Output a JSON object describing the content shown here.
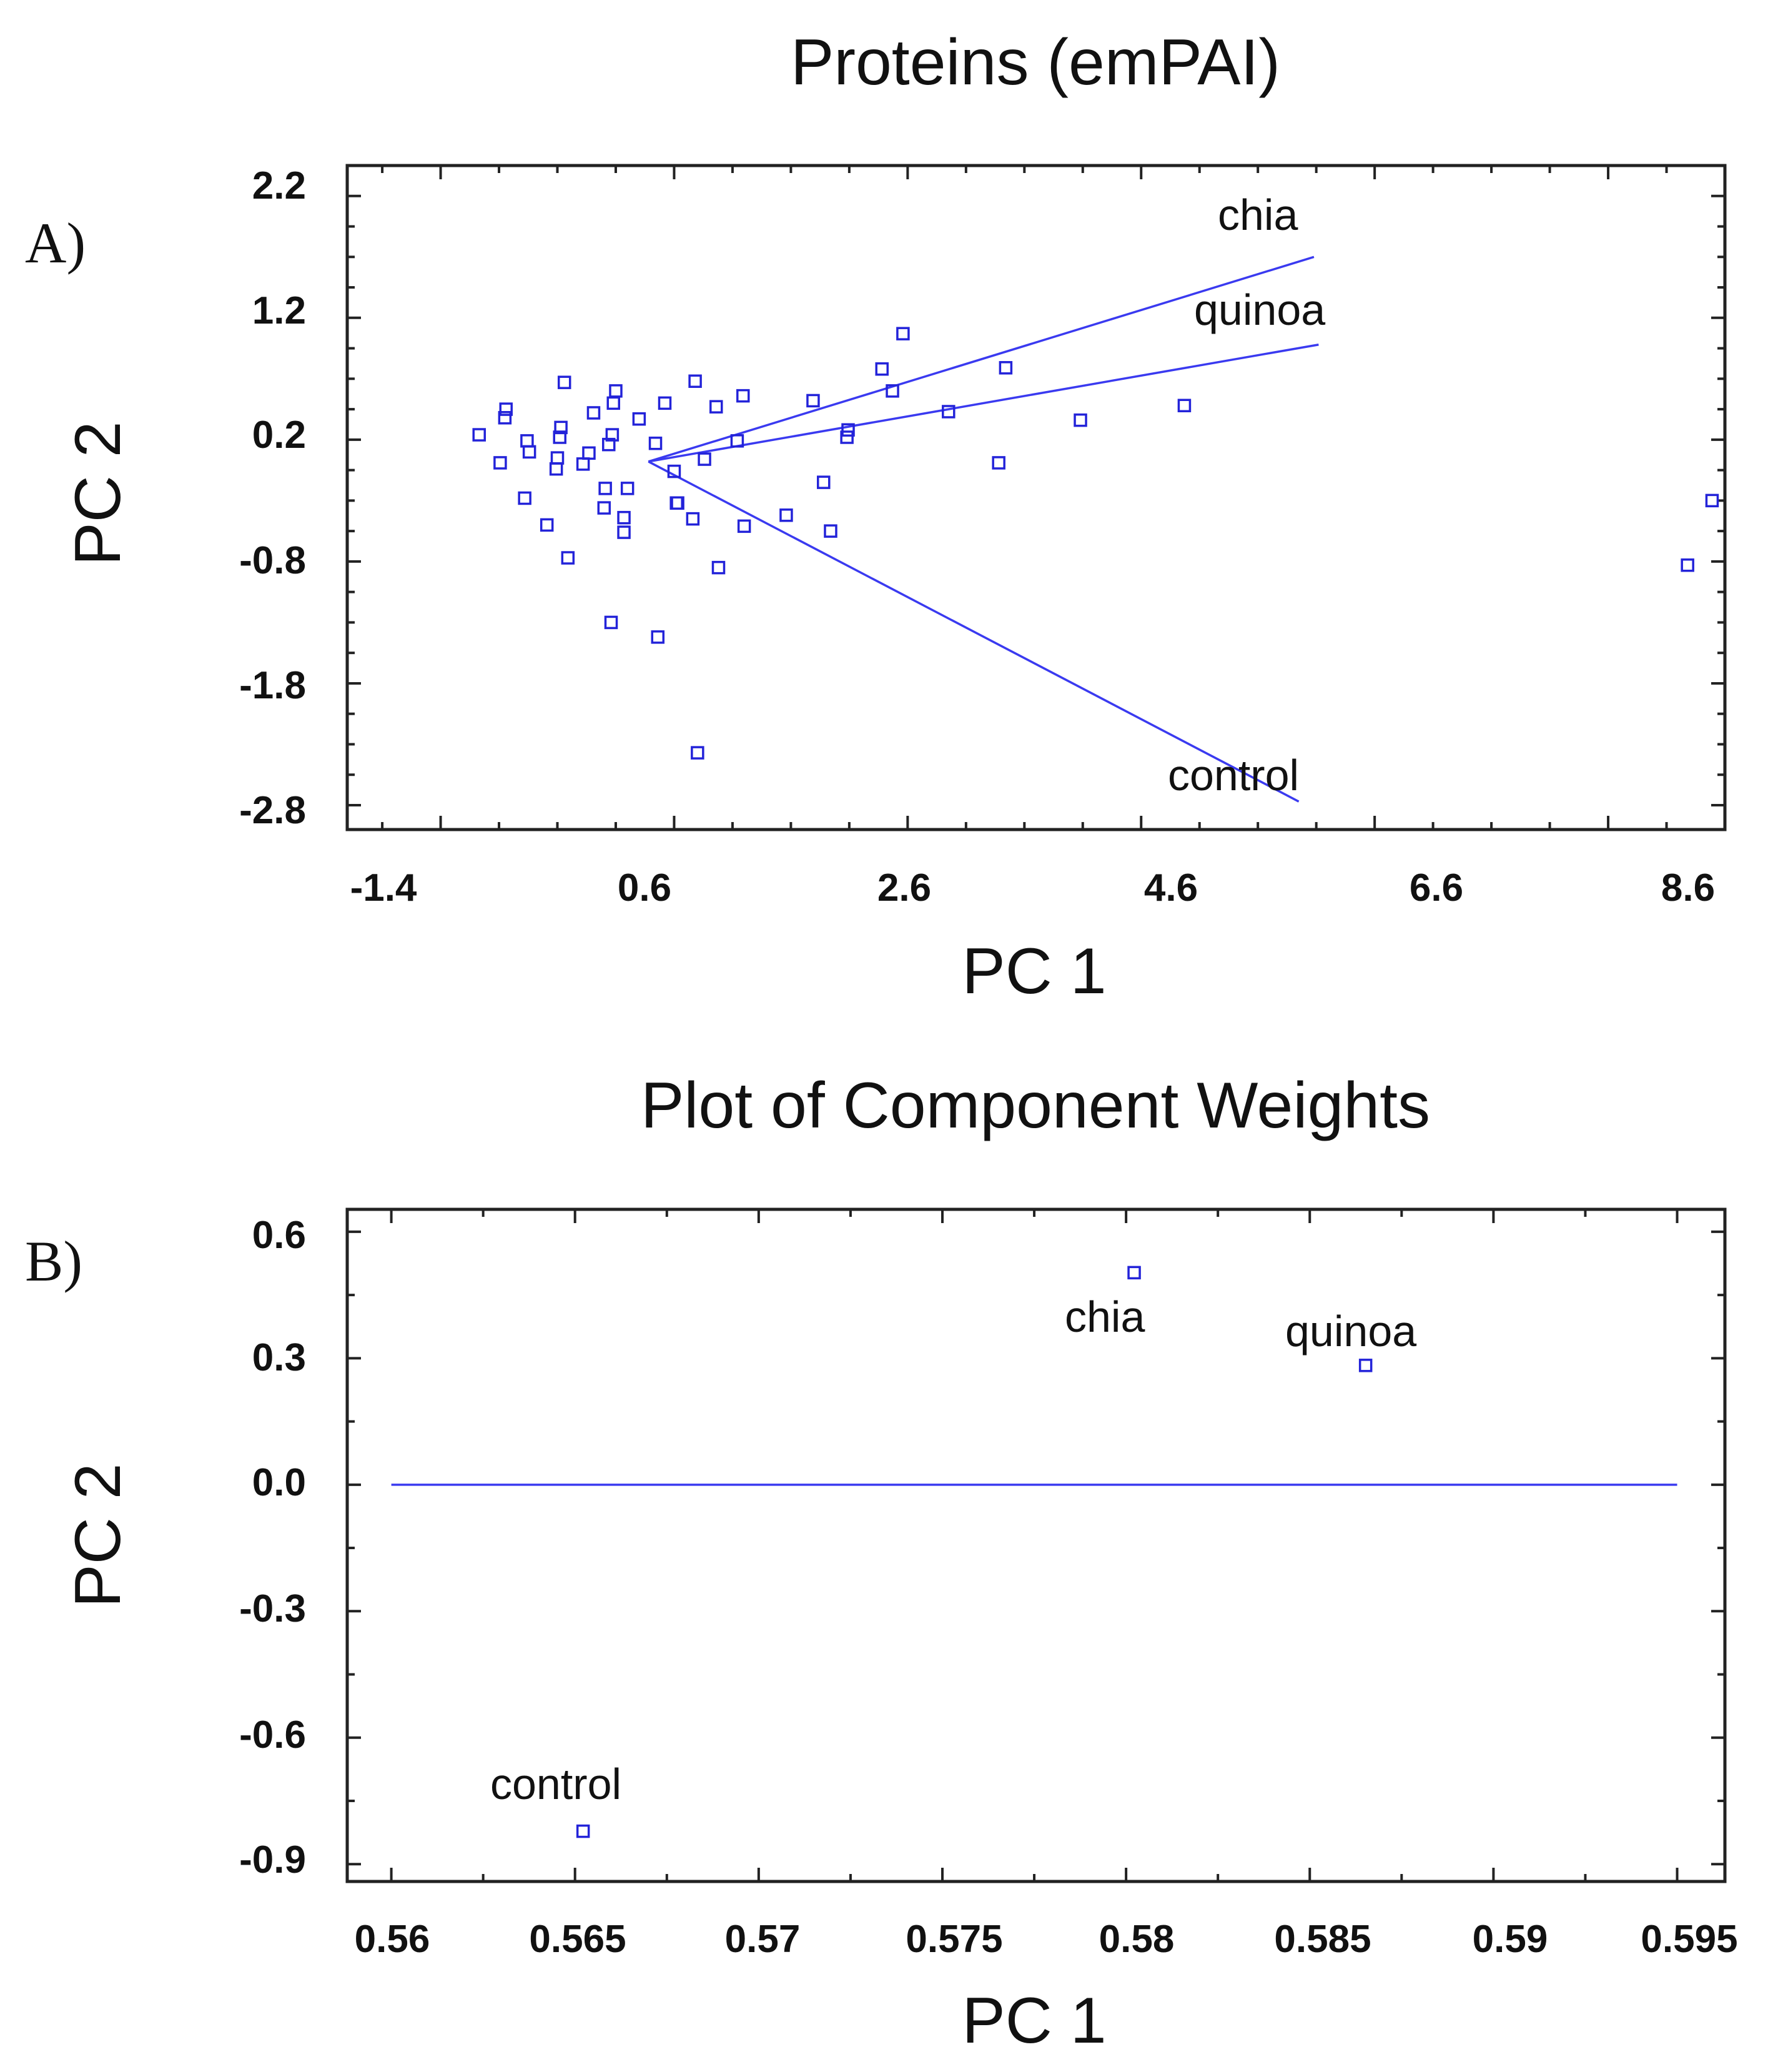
{
  "chart_data": [
    {
      "type": "scatter",
      "panel_label": "A)",
      "title": "Proteins (emPAI)",
      "xlabel": "PC 1",
      "ylabel": "PC 2",
      "xlim": [
        -2.2,
        9.6
      ],
      "ylim": [
        -3.0,
        2.45
      ],
      "xticks": [
        -1.4,
        0.6,
        2.6,
        4.6,
        6.6,
        8.6
      ],
      "xtick_labels": [
        "-1.4",
        "0.6",
        "2.6",
        "4.6",
        "6.6",
        "8.6"
      ],
      "yticks": [
        2.2,
        1.2,
        0.2,
        -0.8,
        -1.8,
        -2.8
      ],
      "ytick_labels": [
        "2.2",
        "1.2",
        "0.2",
        "-0.8",
        "-1.8",
        "-2.8"
      ],
      "points": [
        {
          "x": -1.07,
          "y": 0.24
        },
        {
          "x": -0.89,
          "y": 0.01
        },
        {
          "x": -0.85,
          "y": 0.38
        },
        {
          "x": -0.84,
          "y": 0.45
        },
        {
          "x": -0.66,
          "y": 0.19
        },
        {
          "x": -0.64,
          "y": 0.1
        },
        {
          "x": -0.68,
          "y": -0.28
        },
        {
          "x": -0.49,
          "y": -0.5
        },
        {
          "x": -0.41,
          "y": -0.04
        },
        {
          "x": -0.4,
          "y": 0.05
        },
        {
          "x": -0.38,
          "y": 0.22
        },
        {
          "x": -0.37,
          "y": 0.3
        },
        {
          "x": -0.34,
          "y": 0.67
        },
        {
          "x": -0.31,
          "y": -0.77
        },
        {
          "x": -0.18,
          "y": 0.0
        },
        {
          "x": -0.13,
          "y": 0.09
        },
        {
          "x": -0.09,
          "y": 0.42
        },
        {
          "x": 0.0,
          "y": -0.36
        },
        {
          "x": 0.01,
          "y": -0.2
        },
        {
          "x": 0.04,
          "y": 0.16
        },
        {
          "x": 0.07,
          "y": 0.24
        },
        {
          "x": 0.06,
          "y": -1.3
        },
        {
          "x": 0.08,
          "y": 0.5
        },
        {
          "x": 0.1,
          "y": 0.6
        },
        {
          "x": 0.17,
          "y": -0.56
        },
        {
          "x": 0.17,
          "y": -0.44
        },
        {
          "x": 0.2,
          "y": -0.2
        },
        {
          "x": 0.3,
          "y": 0.37
        },
        {
          "x": 0.44,
          "y": 0.17
        },
        {
          "x": 0.46,
          "y": -1.42
        },
        {
          "x": 0.52,
          "y": 0.5
        },
        {
          "x": 0.6,
          "y": -0.06
        },
        {
          "x": 0.62,
          "y": -0.32
        },
        {
          "x": 0.63,
          "y": -0.32
        },
        {
          "x": 0.76,
          "y": -0.45
        },
        {
          "x": 0.78,
          "y": 0.68
        },
        {
          "x": 0.86,
          "y": 0.04
        },
        {
          "x": 0.8,
          "y": -2.37
        },
        {
          "x": 0.96,
          "y": 0.47
        },
        {
          "x": 0.98,
          "y": -0.85
        },
        {
          "x": 1.14,
          "y": 0.19
        },
        {
          "x": 1.19,
          "y": 0.56
        },
        {
          "x": 1.2,
          "y": -0.51
        },
        {
          "x": 1.56,
          "y": -0.42
        },
        {
          "x": 1.79,
          "y": 0.52
        },
        {
          "x": 1.88,
          "y": -0.15
        },
        {
          "x": 1.94,
          "y": -0.55
        },
        {
          "x": 2.08,
          "y": 0.22
        },
        {
          "x": 2.09,
          "y": 0.28
        },
        {
          "x": 2.38,
          "y": 0.78
        },
        {
          "x": 2.47,
          "y": 0.6
        },
        {
          "x": 2.56,
          "y": 1.07
        },
        {
          "x": 2.95,
          "y": 0.43
        },
        {
          "x": 3.38,
          "y": 0.01
        },
        {
          "x": 3.44,
          "y": 0.79
        },
        {
          "x": 4.08,
          "y": 0.36
        },
        {
          "x": 4.97,
          "y": 0.48
        },
        {
          "x": 9.28,
          "y": -0.83
        },
        {
          "x": 9.49,
          "y": -0.3
        }
      ],
      "vectors": [
        {
          "name": "chia",
          "origin": [
            0.38,
            0.02
          ],
          "end": [
            6.08,
            1.7
          ]
        },
        {
          "name": "quinoa",
          "origin": [
            0.38,
            0.02
          ],
          "end": [
            6.12,
            0.98
          ]
        },
        {
          "name": "control",
          "origin": [
            0.38,
            0.02
          ],
          "end": [
            5.95,
            -2.77
          ]
        }
      ],
      "annotations": [
        "chia",
        "quinoa",
        "control"
      ]
    },
    {
      "type": "scatter",
      "panel_label": "B)",
      "title": "Plot of Component Weights",
      "xlabel": "PC 1",
      "ylabel": "PC 2",
      "xlim": [
        0.5588,
        0.5963
      ],
      "ylim": [
        -0.9412,
        0.6532
      ],
      "xticks": [
        0.56,
        0.565,
        0.57,
        0.575,
        0.58,
        0.585,
        0.59,
        0.595
      ],
      "xtick_labels": [
        "0.56",
        "0.565",
        "0.57",
        "0.575",
        "0.58",
        "0.585",
        "0.59",
        "0.595"
      ],
      "yticks": [
        0.6,
        0.3,
        0.0,
        -0.3,
        -0.6,
        -0.9
      ],
      "ytick_labels": [
        "0.6",
        "0.3",
        "0.0",
        "-0.3",
        "-0.6",
        "-0.9"
      ],
      "reference_line_y": 0.0,
      "points": [
        {
          "name": "chia",
          "x": 0.58022,
          "y": 0.503
        },
        {
          "name": "quinoa",
          "x": 0.58652,
          "y": 0.283
        },
        {
          "name": "control",
          "x": 0.56522,
          "y": -0.822
        }
      ]
    }
  ]
}
